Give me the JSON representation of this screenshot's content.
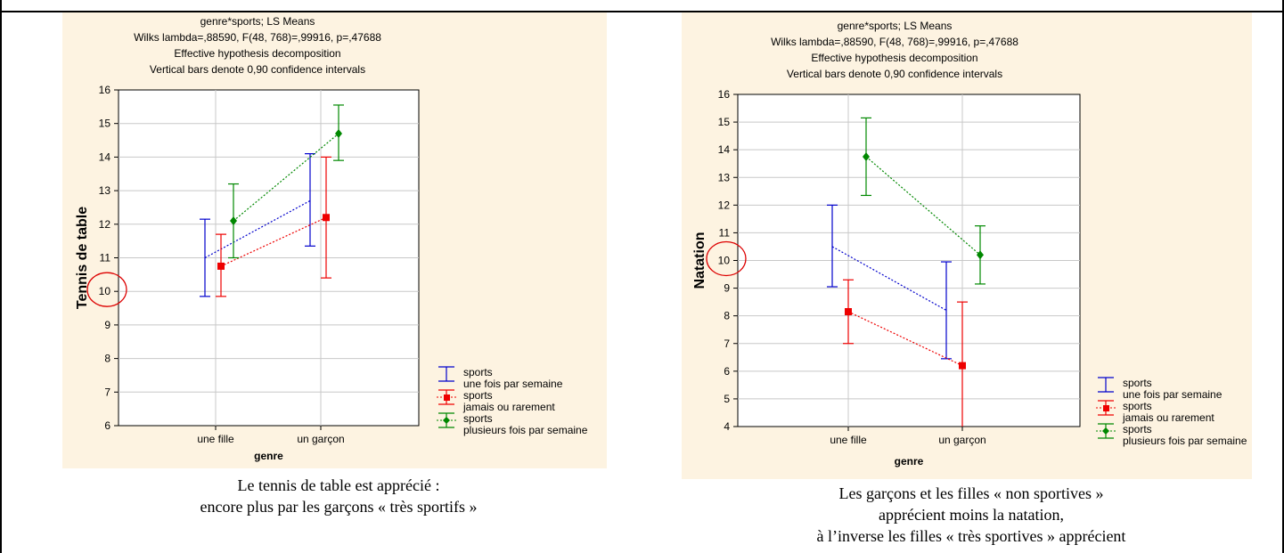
{
  "chart_data": [
    {
      "type": "line",
      "title_lines": [
        "genre*sports; LS Means",
        "Wilks lambda=,88590, F(48, 768)=,99916, p=,47688",
        "Effective hypothesis decomposition",
        "Vertical bars denote 0,90 confidence intervals"
      ],
      "xlabel": "genre",
      "ylabel": "Tennis de table",
      "categories": [
        "une fille",
        "un garçon"
      ],
      "ylim": [
        6,
        16
      ],
      "yticks": [
        6,
        7,
        8,
        9,
        10,
        11,
        12,
        13,
        14,
        15,
        16
      ],
      "grid": true,
      "legend_position": "bottom-right",
      "series": [
        {
          "name": "sports",
          "subname": "une fois par semaine",
          "color": "#0000cc",
          "marker": "none",
          "values": [
            11.0,
            12.7
          ],
          "lower": [
            9.85,
            11.35
          ],
          "upper": [
            12.15,
            14.1
          ]
        },
        {
          "name": "sports",
          "subname": "jamais ou rarement",
          "color": "#ee0000",
          "marker": "square",
          "values": [
            10.75,
            12.2
          ],
          "lower": [
            9.85,
            10.4
          ],
          "upper": [
            11.7,
            14.0
          ]
        },
        {
          "name": "sports",
          "subname": "plusieurs fois par semaine",
          "color": "#008800",
          "marker": "diamond",
          "values": [
            12.1,
            14.7
          ],
          "lower": [
            11.0,
            13.9
          ],
          "upper": [
            13.2,
            15.55
          ]
        }
      ],
      "highlight_value": 10,
      "highlight_color": "#dd0000"
    },
    {
      "type": "line",
      "title_lines": [
        "genre*sports; LS Means",
        "Wilks lambda=,88590, F(48, 768)=,99916, p=,47688",
        "Effective hypothesis decomposition",
        "Vertical bars denote 0,90 confidence intervals"
      ],
      "xlabel": "genre",
      "ylabel": "Natation",
      "categories": [
        "une fille",
        "un garçon"
      ],
      "ylim": [
        4,
        16
      ],
      "yticks": [
        4,
        5,
        6,
        7,
        8,
        9,
        10,
        11,
        12,
        13,
        14,
        15,
        16
      ],
      "grid": true,
      "legend_position": "bottom-right",
      "series": [
        {
          "name": "sports",
          "subname": "une fois par semaine",
          "color": "#0000cc",
          "marker": "none",
          "values": [
            10.5,
            8.2
          ],
          "lower": [
            9.05,
            6.45
          ],
          "upper": [
            12.0,
            9.95
          ]
        },
        {
          "name": "sports",
          "subname": "jamais ou rarement",
          "color": "#ee0000",
          "marker": "square",
          "values": [
            8.15,
            6.2
          ],
          "lower": [
            7.0,
            3.9
          ],
          "upper": [
            9.3,
            8.5
          ]
        },
        {
          "name": "sports",
          "subname": "plusieurs fois par semaine",
          "color": "#008800",
          "marker": "diamond",
          "values": [
            13.75,
            10.2
          ],
          "lower": [
            12.35,
            9.15
          ],
          "upper": [
            15.15,
            11.25
          ]
        }
      ],
      "highlight_value": 10,
      "highlight_color": "#dd0000"
    }
  ],
  "captions": [
    [
      "Le tennis de table est apprécié :",
      "encore plus par les garçons « très sportifs »"
    ],
    [
      "Les garçons et les filles « non sportives »",
      "apprécient moins la natation,",
      "à l’inverse les filles « très sportives » apprécient"
    ]
  ]
}
